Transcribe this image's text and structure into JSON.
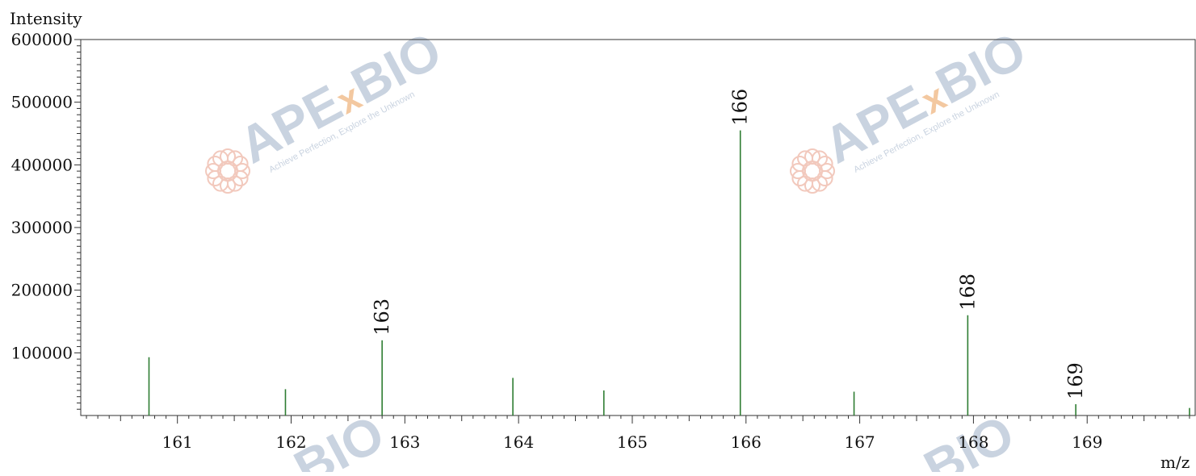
{
  "chart_data": {
    "type": "bar",
    "title": "",
    "ylabel": "Intensity",
    "xlabel": "m/z",
    "xlim": [
      160.15,
      169.95
    ],
    "ylim": [
      0,
      600000
    ],
    "x_ticks": [
      161,
      162,
      163,
      164,
      165,
      166,
      167,
      168,
      169
    ],
    "y_ticks": [
      100000,
      200000,
      300000,
      400000,
      500000,
      600000
    ],
    "y_tick_labels": [
      "100000",
      "200000",
      "300000",
      "400000",
      "500000",
      "600000"
    ],
    "grid": false,
    "peaks": [
      {
        "mz": 160.75,
        "intensity": 93000,
        "label": ""
      },
      {
        "mz": 161.95,
        "intensity": 42000,
        "label": ""
      },
      {
        "mz": 162.8,
        "intensity": 120000,
        "label": "163"
      },
      {
        "mz": 163.95,
        "intensity": 60000,
        "label": ""
      },
      {
        "mz": 164.75,
        "intensity": 40000,
        "label": ""
      },
      {
        "mz": 165.95,
        "intensity": 455000,
        "label": "166"
      },
      {
        "mz": 166.95,
        "intensity": 38000,
        "label": ""
      },
      {
        "mz": 167.95,
        "intensity": 160000,
        "label": "168"
      },
      {
        "mz": 168.9,
        "intensity": 18000,
        "label": "169"
      },
      {
        "mz": 169.9,
        "intensity": 12000,
        "label": ""
      }
    ],
    "peak_color": "#2e7d32"
  },
  "watermark": {
    "brand": "APExBIO",
    "brand_parts": [
      "APE",
      "x",
      "BIO"
    ],
    "tagline": "Achieve Perfection, Explore the Unknown",
    "colors": {
      "text": "#c9d3e0",
      "x": "#f3c8a0",
      "logo": "#f2c9bd"
    }
  }
}
